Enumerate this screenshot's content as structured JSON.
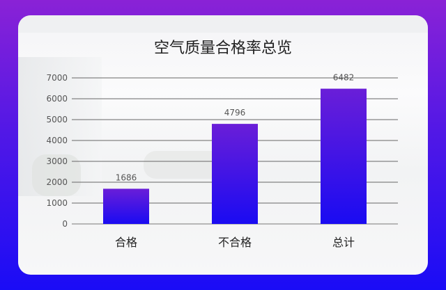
{
  "chart_data": {
    "type": "bar",
    "title": "空气质量合格率总览",
    "categories": [
      "合格",
      "不合格",
      "总计"
    ],
    "values": [
      1686,
      4796,
      6482
    ],
    "ylim": [
      0,
      7000
    ],
    "yticks": [
      0,
      1000,
      2000,
      3000,
      4000,
      5000,
      6000,
      7000
    ],
    "xlabel": "",
    "ylabel": "",
    "grid": true,
    "legend": "none",
    "bar_gradient": [
      "#6a1ed8",
      "#1a0bf2"
    ],
    "background_gradient": [
      "#8a22d6",
      "#1a0cf6"
    ]
  }
}
